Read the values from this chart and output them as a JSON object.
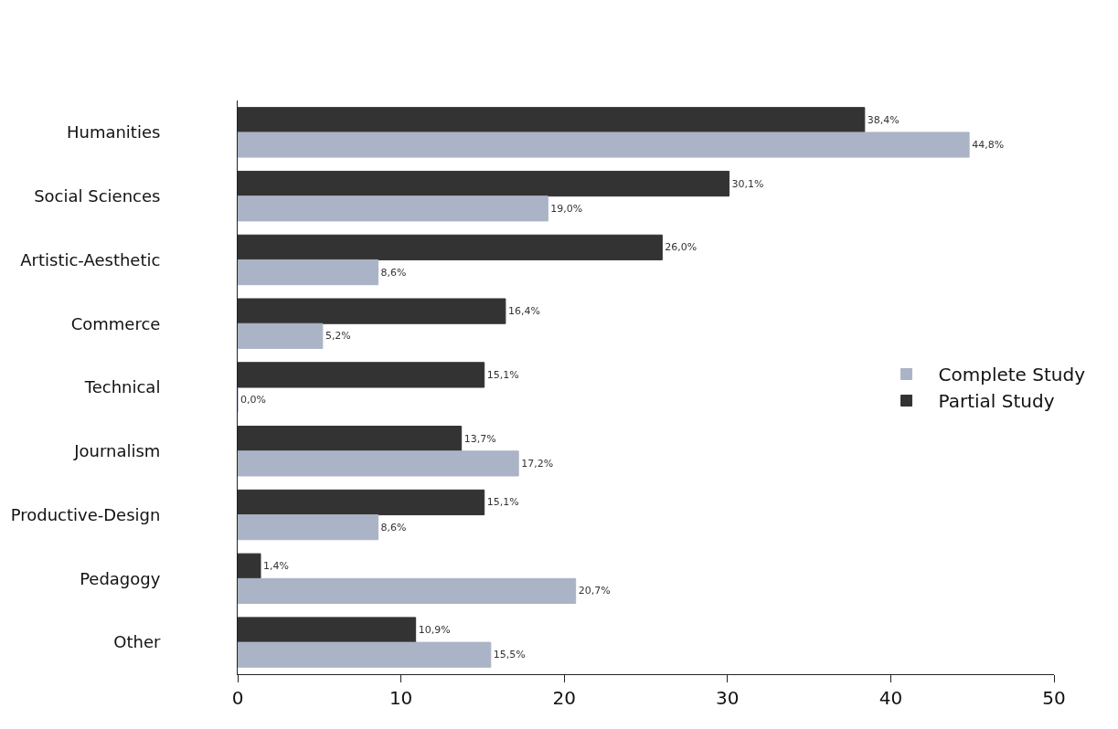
{
  "chart_data": {
    "type": "bar",
    "orientation": "horizontal",
    "categories": [
      "Humanities",
      "Social Sciences",
      "Artistic-Aesthetic",
      "Commerce",
      "Technical",
      "Journalism",
      "Productive-Design",
      "Pedagogy",
      "Other"
    ],
    "series": [
      {
        "name": "Partial Study",
        "color": "#333333",
        "values": [
          38.4,
          30.1,
          26.0,
          16.4,
          15.1,
          13.7,
          15.1,
          1.4,
          10.9
        ],
        "value_labels": [
          "38,4%",
          "30,1%",
          "26,0%",
          "16,4%",
          "15,1%",
          "13,7%",
          "15,1%",
          "1,4%",
          "10,9%"
        ]
      },
      {
        "name": "Complete Study",
        "color": "#aab4c6",
        "values": [
          44.8,
          19.0,
          8.6,
          5.2,
          0.0,
          17.2,
          8.6,
          20.7,
          15.5
        ],
        "value_labels": [
          "44,8%",
          "19,0%",
          "8,6%",
          "5,2%",
          "0,0%",
          "17,2%",
          "8,6%",
          "20,7%",
          "15,5%"
        ]
      }
    ],
    "xlim": [
      0,
      50
    ],
    "xticks": [
      0,
      10,
      20,
      30,
      40,
      50
    ],
    "legend": "right"
  }
}
